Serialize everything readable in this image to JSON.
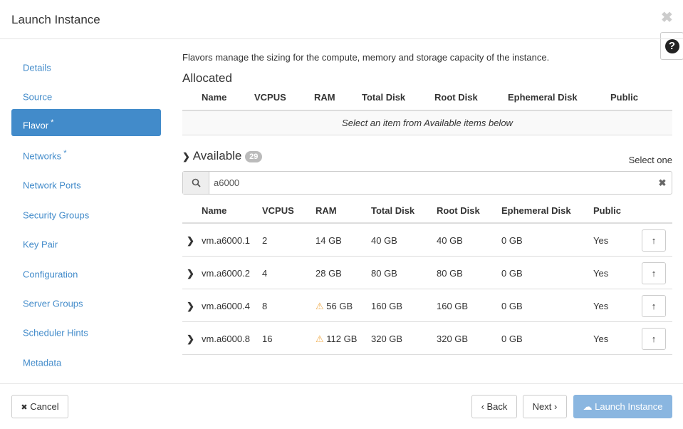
{
  "modal": {
    "title": "Launch Instance",
    "close_icon": "close-icon",
    "help_label": "?"
  },
  "sidebar": {
    "items": [
      {
        "label": "Details",
        "required": ""
      },
      {
        "label": "Source",
        "required": ""
      },
      {
        "label": "Flavor",
        "required": "*",
        "active": true
      },
      {
        "label": "Networks",
        "required": "*"
      },
      {
        "label": "Network Ports",
        "required": ""
      },
      {
        "label": "Security Groups",
        "required": ""
      },
      {
        "label": "Key Pair",
        "required": ""
      },
      {
        "label": "Configuration",
        "required": ""
      },
      {
        "label": "Server Groups",
        "required": ""
      },
      {
        "label": "Scheduler Hints",
        "required": ""
      },
      {
        "label": "Metadata",
        "required": ""
      }
    ]
  },
  "main": {
    "description": "Flavors manage the sizing for the compute, memory and storage capacity of the instance.",
    "allocated": {
      "title": "Allocated",
      "columns": [
        "Name",
        "VCPUS",
        "RAM",
        "Total Disk",
        "Root Disk",
        "Ephemeral Disk",
        "Public"
      ],
      "empty_text": "Select an item from Available items below"
    },
    "available": {
      "title": "Available",
      "count": "29",
      "select_hint": "Select one",
      "search_value": "a6000",
      "columns": [
        "Name",
        "VCPUS",
        "RAM",
        "Total Disk",
        "Root Disk",
        "Ephemeral Disk",
        "Public"
      ],
      "rows": [
        {
          "name": "vm.a6000.1",
          "vcpus": "2",
          "ram": "14 GB",
          "ram_warning": false,
          "total_disk": "40 GB",
          "root_disk": "40 GB",
          "ephemeral_disk": "0 GB",
          "public": "Yes"
        },
        {
          "name": "vm.a6000.2",
          "vcpus": "4",
          "ram": "28 GB",
          "ram_warning": false,
          "total_disk": "80 GB",
          "root_disk": "80 GB",
          "ephemeral_disk": "0 GB",
          "public": "Yes"
        },
        {
          "name": "vm.a6000.4",
          "vcpus": "8",
          "ram": "56 GB",
          "ram_warning": true,
          "total_disk": "160 GB",
          "root_disk": "160 GB",
          "ephemeral_disk": "0 GB",
          "public": "Yes"
        },
        {
          "name": "vm.a6000.8",
          "vcpus": "16",
          "ram": "112 GB",
          "ram_warning": true,
          "total_disk": "320 GB",
          "root_disk": "320 GB",
          "ephemeral_disk": "0 GB",
          "public": "Yes"
        }
      ]
    }
  },
  "footer": {
    "cancel": "Cancel",
    "back": "Back",
    "next": "Next",
    "launch": "Launch Instance"
  },
  "colors": {
    "primary": "#428bca",
    "launch_disabled": "#8ab6e0",
    "warning": "#f0ad4e"
  }
}
